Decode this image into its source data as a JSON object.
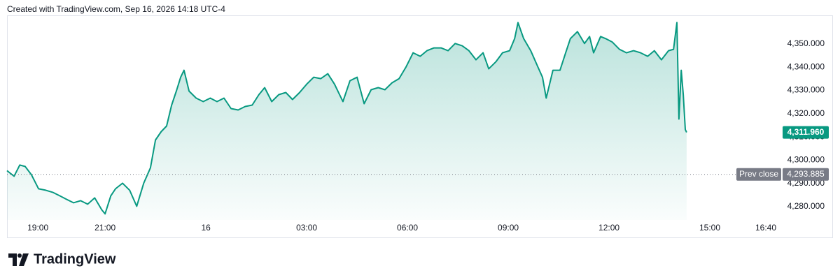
{
  "chart_data": {
    "type": "area",
    "header": "Created with TradingView.com, Sep 16, 2026 14:18 UTC-4",
    "brand": "TradingView",
    "series": [
      {
        "name": null,
        "color": "#089981",
        "x": [
          -5.92,
          -5.71,
          -5.54,
          -5.38,
          -5.19,
          -4.98,
          -4.77,
          -4.56,
          -4.35,
          -4.15,
          -3.94,
          -3.73,
          -3.52,
          -3.31,
          -3.1,
          -3.0,
          -2.83,
          -2.69,
          -2.48,
          -2.27,
          -2.06,
          -1.85,
          -1.65,
          -1.5,
          -1.33,
          -1.17,
          -1.02,
          -0.88,
          -0.75,
          -0.65,
          -0.5,
          -0.29,
          -0.08,
          0.13,
          0.33,
          0.54,
          0.75,
          0.96,
          1.17,
          1.38,
          1.58,
          1.75,
          1.96,
          2.17,
          2.38,
          2.58,
          2.79,
          3.0,
          3.21,
          3.42,
          3.63,
          3.83,
          4.08,
          4.29,
          4.5,
          4.71,
          4.92,
          5.13,
          5.33,
          5.54,
          5.75,
          5.96,
          6.17,
          6.38,
          6.58,
          6.79,
          7.0,
          7.21,
          7.42,
          7.63,
          7.83,
          8.04,
          8.25,
          8.42,
          8.63,
          8.83,
          9.04,
          9.19,
          9.29,
          9.46,
          9.67,
          9.88,
          10.02,
          10.13,
          10.33,
          10.54,
          10.71,
          10.85,
          11.06,
          11.27,
          11.42,
          11.54,
          11.75,
          11.9,
          12.1,
          12.31,
          12.52,
          12.73,
          12.94,
          13.15,
          13.35,
          13.56,
          13.77,
          13.92,
          14.02,
          14.08,
          14.15,
          14.21,
          14.27,
          14.31
        ],
        "values": [
          4295.5,
          4293.1,
          4297.9,
          4297.3,
          4293.7,
          4287.7,
          4287.1,
          4286.2,
          4284.7,
          4283.2,
          4281.7,
          4282.6,
          4281.1,
          4283.8,
          4278.7,
          4276.9,
          4284.7,
          4287.7,
          4290.1,
          4287.1,
          4280.2,
          4290.1,
          4296.7,
          4308.7,
          4312.3,
          4314.7,
          4323.7,
          4329.7,
          4335.7,
          4338.7,
          4329.7,
          4326.7,
          4325.2,
          4326.7,
          4325.2,
          4326.7,
          4322.2,
          4321.6,
          4323.1,
          4323.7,
          4328.2,
          4331.2,
          4325.2,
          4328.2,
          4329.1,
          4326.1,
          4329.1,
          4332.7,
          4335.7,
          4335.1,
          4337.2,
          4332.7,
          4325.2,
          4334.2,
          4335.7,
          4324.3,
          4330.3,
          4331.2,
          4330.3,
          4333.3,
          4335.1,
          4340.2,
          4346.2,
          4344.7,
          4347.1,
          4348.3,
          4348.3,
          4347.1,
          4350.2,
          4349.2,
          4347.1,
          4343.2,
          4346.2,
          4339.3,
          4342.3,
          4346.2,
          4347.1,
          4352.3,
          4359.2,
          4352.3,
          4347.1,
          4340.2,
          4335.7,
          4326.7,
          4338.7,
          4338.7,
          4346.2,
          4352.3,
          4355.3,
          4350.2,
          4353.2,
          4346.2,
          4353.2,
          4352.3,
          4350.8,
          4347.7,
          4346.2,
          4347.1,
          4346.2,
          4344.7,
          4347.1,
          4343.2,
          4347.1,
          4347.7,
          4359.2,
          4317.7,
          4338.7,
          4328.2,
          4313.2,
          4311.96
        ]
      }
    ],
    "xlim": [
      -5.92,
      17.0
    ],
    "xticks": [
      {
        "value": -5,
        "label": "19:00"
      },
      {
        "value": -3,
        "label": "21:00"
      },
      {
        "value": 0,
        "label": "16"
      },
      {
        "value": 3,
        "label": "03:00"
      },
      {
        "value": 6,
        "label": "06:00"
      },
      {
        "value": 9,
        "label": "09:00"
      },
      {
        "value": 12,
        "label": "12:00"
      },
      {
        "value": 15,
        "label": "15:00"
      },
      {
        "value": 16.6667,
        "label": "16:40"
      }
    ],
    "ylim": [
      4274.3,
      4362.3
    ],
    "yticks": [
      {
        "value": 4280,
        "label": "4,280.000"
      },
      {
        "value": 4290,
        "label": "4,290.000"
      },
      {
        "value": 4300,
        "label": "4,300.000"
      },
      {
        "value": 4310,
        "label": "4,310.000"
      },
      {
        "value": 4320,
        "label": "4,320.000"
      },
      {
        "value": 4330,
        "label": "4,330.000"
      },
      {
        "value": 4340,
        "label": "4,340.000"
      },
      {
        "value": 4350,
        "label": "4,350.000"
      }
    ],
    "grid": false,
    "prev_close": {
      "label": "Prev close",
      "value": 4293.885,
      "value_label": "4,293.885",
      "color": "#787b86"
    },
    "last_price": {
      "value": 4311.96,
      "label": "4,311.960",
      "color": "#089981"
    }
  }
}
